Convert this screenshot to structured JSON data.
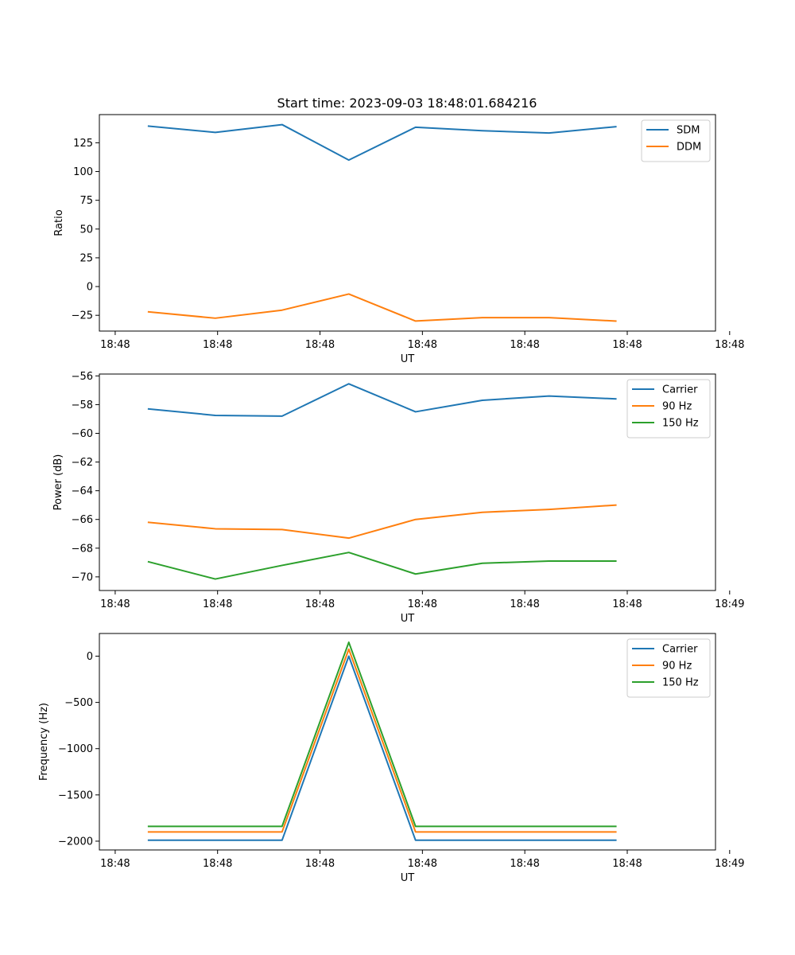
{
  "title": "Start time: 2023-09-03 18:48:01.684216",
  "colors": {
    "blue": "#1f77b4",
    "orange": "#ff7f0e",
    "green": "#2ca02c"
  },
  "chart_data": [
    {
      "type": "line",
      "title": "Start time: 2023-09-03 18:48:01.684216",
      "xlabel": "UT",
      "ylabel": "Ratio",
      "xlim": [
        -0.737,
        8.494
      ],
      "ylim": [
        -38.7,
        149.5
      ],
      "x": [
        0,
        1,
        2,
        3,
        4,
        5,
        6,
        7
      ],
      "x_ticks": [
        -0.5,
        1.035,
        2.57,
        4.105,
        5.64,
        7.175,
        8.71
      ],
      "x_tick_labels": [
        "18:48",
        "18:48",
        "18:48",
        "18:48",
        "18:48",
        "18:48",
        "18:48"
      ],
      "x_tick_positions": [
        -0.5,
        1.034,
        2.568,
        4.103,
        5.637,
        7.172,
        8.706
      ],
      "y_ticks": [
        -25,
        0,
        25,
        50,
        75,
        100,
        125
      ],
      "y_tick_labels": [
        "−25",
        "0",
        "25",
        "50",
        "75",
        "100",
        "125"
      ],
      "legend": "top-right",
      "series": [
        {
          "name": "SDM",
          "color": "#1f77b4",
          "values": [
            139.5,
            134.0,
            140.8,
            110.0,
            138.5,
            135.5,
            133.5,
            139.0
          ]
        },
        {
          "name": "DDM",
          "color": "#ff7f0e",
          "values": [
            -22.0,
            -27.5,
            -20.5,
            -6.5,
            -30.0,
            -27.0,
            -27.0,
            -30.0
          ]
        }
      ]
    },
    {
      "type": "line",
      "title": "",
      "xlabel": "UT",
      "ylabel": "Power (dB)",
      "xlim": [
        -0.737,
        8.494
      ],
      "ylim": [
        -70.95,
        -55.87
      ],
      "x": [
        0,
        1,
        2,
        3,
        4,
        5,
        6,
        7
      ],
      "x_ticks": [
        -0.5,
        1.035,
        2.57,
        4.105,
        5.64,
        7.175,
        8.71
      ],
      "x_tick_labels": [
        "18:48",
        "18:48",
        "18:48",
        "18:48",
        "18:48",
        "18:48",
        "18:49"
      ],
      "x_tick_positions": [
        -0.5,
        1.034,
        2.568,
        4.103,
        5.637,
        7.172,
        8.706
      ],
      "y_ticks": [
        -70,
        -68,
        -66,
        -64,
        -62,
        -60,
        -58,
        -56
      ],
      "y_tick_labels": [
        "−70",
        "−68",
        "−66",
        "−64",
        "−62",
        "−60",
        "−58",
        "−56"
      ],
      "legend": "top-right",
      "series": [
        {
          "name": "Carrier",
          "color": "#1f77b4",
          "values": [
            -58.3,
            -58.75,
            -58.8,
            -56.55,
            -58.5,
            -57.7,
            -57.4,
            -57.6
          ]
        },
        {
          "name": "90 Hz",
          "color": "#ff7f0e",
          "values": [
            -66.2,
            -66.65,
            -66.7,
            -67.3,
            -66.0,
            -65.5,
            -65.3,
            -65.0
          ]
        },
        {
          "name": "150 Hz",
          "color": "#2ca02c",
          "values": [
            -68.95,
            -70.15,
            -69.2,
            -68.3,
            -69.8,
            -69.05,
            -68.9,
            -68.9
          ]
        }
      ]
    },
    {
      "type": "line",
      "title": "",
      "xlabel": "UT",
      "ylabel": "Frequency (Hz)",
      "xlim": [
        -0.737,
        8.494
      ],
      "ylim": [
        -2095,
        245
      ],
      "x": [
        0,
        1,
        2,
        3,
        4,
        5,
        6,
        7
      ],
      "x_ticks": [
        -0.5,
        1.035,
        2.57,
        4.105,
        5.64,
        7.175,
        8.71
      ],
      "x_tick_labels": [
        "18:48",
        "18:48",
        "18:48",
        "18:48",
        "18:48",
        "18:48",
        "18:49"
      ],
      "x_tick_positions": [
        -0.5,
        1.034,
        2.568,
        4.103,
        5.637,
        7.172,
        8.706
      ],
      "y_ticks": [
        -2000,
        -1500,
        -1000,
        -500,
        0
      ],
      "y_tick_labels": [
        "−2000",
        "−1500",
        "−1000",
        "−500",
        "0"
      ],
      "legend": "top-right",
      "series": [
        {
          "name": "Carrier",
          "color": "#1f77b4",
          "values": [
            -1990,
            -1990,
            -1990,
            0,
            -1990,
            -1990,
            -1990,
            -1990
          ]
        },
        {
          "name": "90 Hz",
          "color": "#ff7f0e",
          "values": [
            -1900,
            -1900,
            -1900,
            75,
            -1900,
            -1900,
            -1900,
            -1900
          ]
        },
        {
          "name": "150 Hz",
          "color": "#2ca02c",
          "values": [
            -1840,
            -1840,
            -1840,
            150,
            -1840,
            -1840,
            -1840,
            -1840
          ]
        }
      ]
    }
  ]
}
